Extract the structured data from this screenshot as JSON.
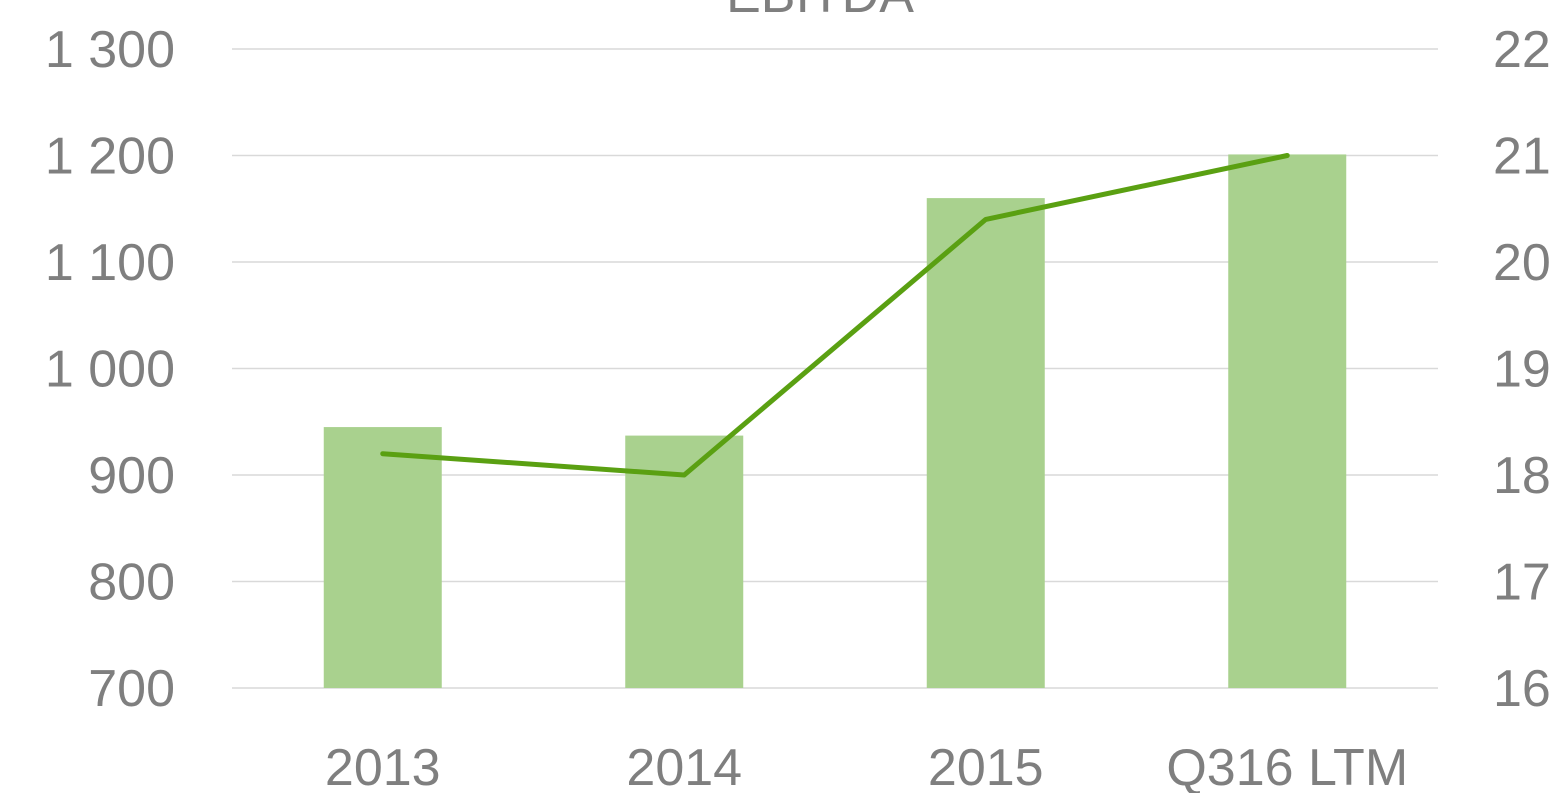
{
  "chart_data": {
    "type": "bar_line",
    "title": "EBITDA",
    "categories": [
      "2013",
      "2014",
      "2015",
      "Q316 LTM"
    ],
    "series": [
      {
        "color": "#a9d18e",
        "values": [
          945,
          937,
          1160,
          1201
        ]
      },
      {
        "color": "#5aa012",
        "values": [
          18.2,
          18.0,
          20.4,
          21.0
        ],
        "axis": "y2"
      }
    ],
    "ylim": [
      700,
      1300
    ],
    "yticks": [
      {
        "value": 700,
        "label": "700"
      },
      {
        "value": 800,
        "label": "800"
      },
      {
        "value": 900,
        "label": "900"
      },
      {
        "value": 1000,
        "label": "1 000"
      },
      {
        "value": 1100,
        "label": "1 100"
      },
      {
        "value": 1200,
        "label": "1 200"
      },
      {
        "value": 1300,
        "label": "1 300"
      }
    ],
    "y2lim": [
      16,
      22
    ],
    "y2ticks": [
      16,
      17,
      18,
      19,
      20,
      21,
      22
    ],
    "grid": true
  }
}
